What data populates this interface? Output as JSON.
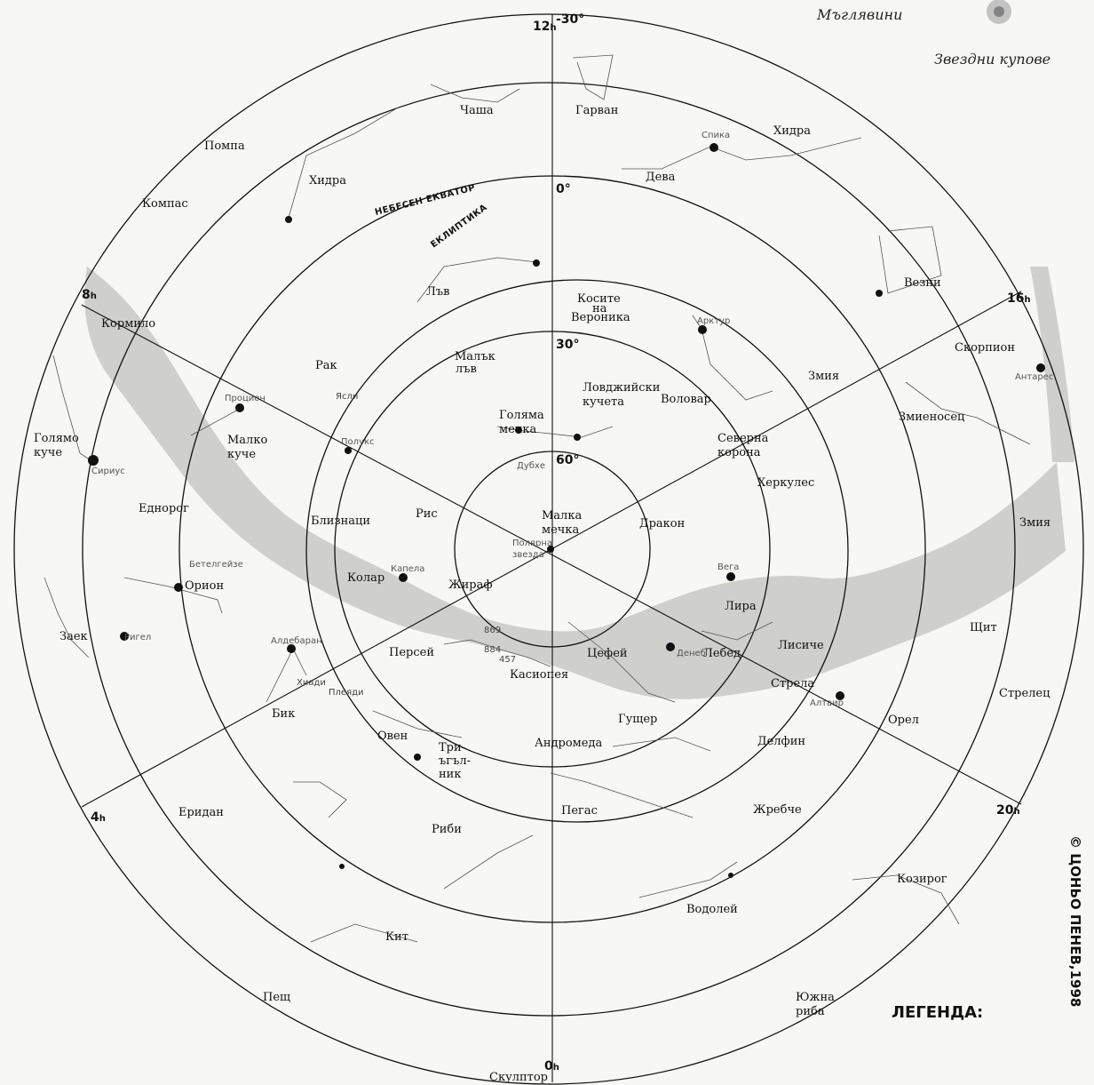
{
  "map": {
    "hours": {
      "h12": "12",
      "h8": "8",
      "h16": "16",
      "h4": "4",
      "h20": "20",
      "h0": "0",
      "unit": "h"
    },
    "declinations": [
      "-30°",
      "0°",
      "30°",
      "60°"
    ],
    "lines": {
      "equator": "НЕБЕСЕН ЕКВАТОР",
      "ecliptic": "ЕКЛИПТИКА"
    },
    "constellations": [
      "Чаша",
      "Гарван",
      "Помпа",
      "Хидра",
      "Хидра",
      "Компас",
      "Дева",
      "Лъв",
      "Косите",
      "на",
      "Вероника",
      "Везни",
      "Кормило",
      "Рак",
      "Малък",
      "лъв",
      "Скорпион",
      "Змия",
      "Ловджийски",
      "кучета",
      "Воловар",
      "Голямо",
      "куче",
      "Малко",
      "куче",
      "Голяма",
      "мечка",
      "Змиеносец",
      "Северна",
      "корона",
      "Херкулес",
      "Еднорог",
      "Близнаци",
      "Рис",
      "Малка",
      "мечка",
      "Дракон",
      "Змия",
      "Колар",
      "Орион",
      "Жираф",
      "Лира",
      "Заек",
      "Персей",
      "Цефей",
      "Лебед",
      "Лисиче",
      "Щит",
      "Касиопея",
      "Стрела",
      "Стрелец",
      "Орел",
      "Гущер",
      "Бик",
      "Овен",
      "Три-",
      "ъгъл-",
      "ник",
      "Андромеда",
      "Делфин",
      "Еридан",
      "Пегас",
      "Жребче",
      "Риби",
      "Козирог",
      "Водолей",
      "Кит",
      "Пещ",
      "Южна",
      "риба",
      "Скулптор"
    ],
    "stars": [
      "Спика",
      "Арктур",
      "Процион",
      "Антарес",
      "Полукс",
      "Сириус",
      "Дубхе",
      "Полярна",
      "звезда",
      "Бетелгейзе",
      "Капела",
      "Вега",
      "Ригел",
      "Алдебаран",
      "Денеб",
      "Алтаир"
    ],
    "clusters": [
      "Ясли",
      "Хиади",
      "Плеяди",
      "869",
      "884",
      "457"
    ]
  },
  "annotations": {
    "nebulae": "Мъглявини",
    "star_clusters": "Звездни купове",
    "legend": "ЛЕГЕНДА:",
    "copyright": "© ЦОНЬО ПЕНЕВ,1998"
  }
}
